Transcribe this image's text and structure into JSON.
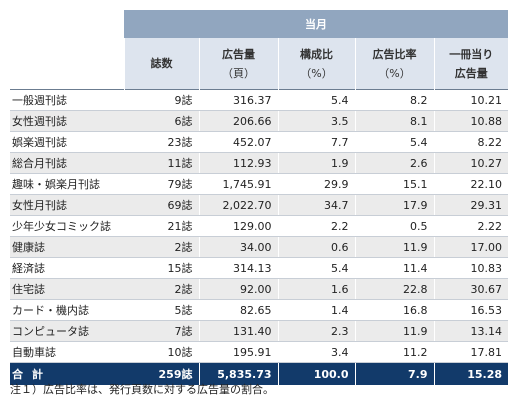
{
  "header": {
    "group_label": "当月",
    "columns": [
      {
        "line1": "誌数",
        "line2": ""
      },
      {
        "line1": "広告量",
        "line2": "（頁）"
      },
      {
        "line1": "構成比",
        "line2": "（%）"
      },
      {
        "line1": "広告比率",
        "line2": "（%）"
      },
      {
        "line1": "一冊当り",
        "line2": "広告量"
      }
    ]
  },
  "rows": [
    {
      "name": "一般週刊誌",
      "count": "9誌",
      "pages": "316.37",
      "share": "5.4",
      "ad_ratio": "8.2",
      "per_issue": "10.21"
    },
    {
      "name": "女性週刊誌",
      "count": "6誌",
      "pages": "206.66",
      "share": "3.5",
      "ad_ratio": "8.1",
      "per_issue": "10.88"
    },
    {
      "name": "娯楽週刊誌",
      "count": "23誌",
      "pages": "452.07",
      "share": "7.7",
      "ad_ratio": "5.4",
      "per_issue": "8.22"
    },
    {
      "name": "総合月刊誌",
      "count": "11誌",
      "pages": "112.93",
      "share": "1.9",
      "ad_ratio": "2.6",
      "per_issue": "10.27"
    },
    {
      "name": "趣味・娯楽月刊誌",
      "count": "79誌",
      "pages": "1,745.91",
      "share": "29.9",
      "ad_ratio": "15.1",
      "per_issue": "22.10"
    },
    {
      "name": "女性月刊誌",
      "count": "69誌",
      "pages": "2,022.70",
      "share": "34.7",
      "ad_ratio": "17.9",
      "per_issue": "29.31"
    },
    {
      "name": "少年少女コミック誌",
      "count": "21誌",
      "pages": "129.00",
      "share": "2.2",
      "ad_ratio": "0.5",
      "per_issue": "2.22"
    },
    {
      "name": "健康誌",
      "count": "2誌",
      "pages": "34.00",
      "share": "0.6",
      "ad_ratio": "11.9",
      "per_issue": "17.00"
    },
    {
      "name": "経済誌",
      "count": "15誌",
      "pages": "314.13",
      "share": "5.4",
      "ad_ratio": "11.4",
      "per_issue": "10.83"
    },
    {
      "name": "住宅誌",
      "count": "2誌",
      "pages": "92.00",
      "share": "1.6",
      "ad_ratio": "22.8",
      "per_issue": "30.67"
    },
    {
      "name": "カード・機内誌",
      "count": "5誌",
      "pages": "82.65",
      "share": "1.4",
      "ad_ratio": "16.8",
      "per_issue": "16.53"
    },
    {
      "name": "コンピュータ誌",
      "count": "7誌",
      "pages": "131.40",
      "share": "2.3",
      "ad_ratio": "11.9",
      "per_issue": "13.14"
    },
    {
      "name": "自動車誌",
      "count": "10誌",
      "pages": "195.91",
      "share": "3.4",
      "ad_ratio": "11.2",
      "per_issue": "17.81"
    }
  ],
  "total": {
    "label_a": "合",
    "label_b": "計",
    "count": "259誌",
    "pages": "5,835.73",
    "share": "100.0",
    "ad_ratio": "7.9",
    "per_issue": "15.28"
  },
  "note": "注１）広告比率は、発行頁数に対する広告量の割合。"
}
